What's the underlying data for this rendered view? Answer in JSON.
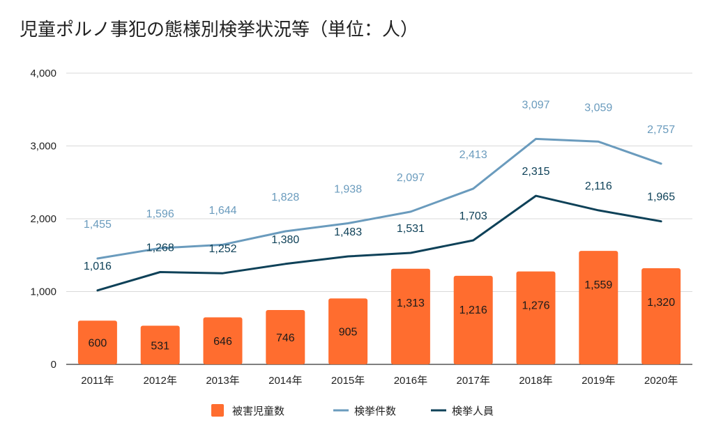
{
  "chart_data": {
    "type": "bar",
    "title": "児童ポルノ事犯の態様別検挙状況等（単位：人）",
    "categories": [
      "2011年",
      "2012年",
      "2013年",
      "2014年",
      "2015年",
      "2016年",
      "2017年",
      "2018年",
      "2019年",
      "2020年"
    ],
    "ylim": [
      0,
      4000
    ],
    "yticks": [
      0,
      1000,
      2000,
      3000,
      4000
    ],
    "ytick_labels": [
      "0",
      "1,000",
      "2,000",
      "3,000",
      "4,000"
    ],
    "grid": true,
    "legend_position": "bottom",
    "series": [
      {
        "name": "被害児童数",
        "type": "bar",
        "color": "#ff6d2f",
        "values": [
          600,
          531,
          646,
          746,
          905,
          1313,
          1216,
          1276,
          1559,
          1320
        ],
        "labels": [
          "600",
          "531",
          "646",
          "746",
          "905",
          "1,313",
          "1,216",
          "1,276",
          "1,559",
          "1,320"
        ]
      },
      {
        "name": "検挙件数",
        "type": "line",
        "color": "#6a9bbd",
        "values": [
          1455,
          1596,
          1644,
          1828,
          1938,
          2097,
          2413,
          3097,
          3059,
          2757
        ],
        "labels": [
          "1,455",
          "1,596",
          "1,644",
          "1,828",
          "1,938",
          "2,097",
          "2,413",
          "3,097",
          "3,059",
          "2,757"
        ]
      },
      {
        "name": "検挙人員",
        "type": "line",
        "color": "#0e4158",
        "values": [
          1016,
          1268,
          1252,
          1380,
          1483,
          1531,
          1703,
          2315,
          2116,
          1965
        ],
        "labels": [
          "1,016",
          "1,268",
          "1,252",
          "1,380",
          "1,483",
          "1,531",
          "1,703",
          "2,315",
          "2,116",
          "1,965"
        ]
      }
    ]
  }
}
